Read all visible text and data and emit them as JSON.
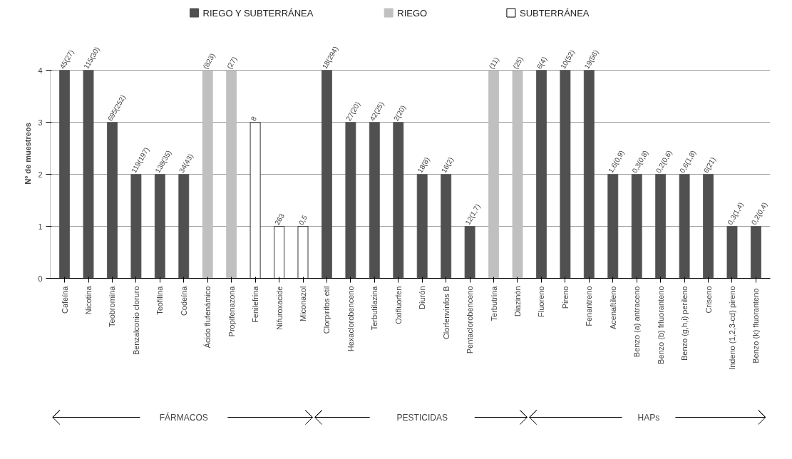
{
  "chart_data": {
    "type": "bar",
    "ylabel": "Nº de muestreos",
    "categories": [
      "Cafeína",
      "Nicotina",
      "Teobromina",
      "Benzalconio cloruro",
      "Teofilina",
      "Codeína",
      "Ácido flufenámico",
      "Propifenazona",
      "Fenilefrina",
      "Nifuroxacide",
      "Miconazol",
      "Clorpirifos etil",
      "Hexaclorobenceno",
      "Terbutilazina",
      "Oxifluorfen",
      "Diurón",
      "Clorfenvinfos B",
      "Pentaclorobenceno",
      "Terbutrina",
      "Diazinón",
      "Fluoreno",
      "Pireno",
      "Fenantreno",
      "Acenaftileno",
      "Benzo (a) antraceno",
      "Benzo (b) frluoranteno",
      "Benzo (g,h,i) perileno",
      "Criseno",
      "Indeno (1,2,3-cd) pireno",
      "Benzo (k)  fluoranteno"
    ],
    "series": [
      {
        "name": "RIEGO Y SUBTERRÁNEA",
        "color": "#505050",
        "values": [
          4,
          4,
          3,
          2,
          2,
          2,
          null,
          null,
          null,
          null,
          null,
          4,
          3,
          3,
          3,
          2,
          2,
          1,
          null,
          null,
          4,
          4,
          4,
          2,
          2,
          2,
          2,
          2,
          1,
          1
        ]
      },
      {
        "name": "RIEGO",
        "color": "#c0c0c0",
        "values": [
          null,
          null,
          null,
          null,
          null,
          null,
          4,
          4,
          null,
          null,
          null,
          null,
          null,
          null,
          null,
          null,
          null,
          null,
          4,
          4,
          null,
          null,
          null,
          null,
          null,
          null,
          null,
          null,
          null,
          null
        ]
      },
      {
        "name": "SUBTERRÁNEA",
        "color": "#ffffff",
        "values": [
          null,
          null,
          null,
          null,
          null,
          null,
          null,
          null,
          3,
          1,
          1,
          null,
          null,
          null,
          null,
          null,
          null,
          null,
          null,
          null,
          null,
          null,
          null,
          null,
          null,
          null,
          null,
          null,
          null,
          null
        ]
      }
    ],
    "ylim": [
      0,
      4
    ],
    "yticks": [
      0,
      1,
      2,
      3,
      4
    ],
    "grid": "y",
    "legend": "top",
    "annotations": [
      {
        "text": "45(27)",
        "x": "Cafeína",
        "y": 4
      },
      {
        "text": "115(30)",
        "x": "Nicotina",
        "y": 4
      },
      {
        "text": "695(252)",
        "x": "Teobromina",
        "y": 3
      },
      {
        "text": "119(197)",
        "x": "Benzalconio cloruro",
        "y": 2
      },
      {
        "text": "138(35)",
        "x": "Teofilina",
        "y": 2
      },
      {
        "text": "34(43)",
        "x": "Codeína",
        "y": 2
      },
      {
        "text": "(823)",
        "x": "Ácido flufenámico",
        "y": 4
      },
      {
        "text": "(27)",
        "x": "Propifenazona",
        "y": 4
      },
      {
        "text": "8",
        "x": "Fenilefrina",
        "y": 3
      },
      {
        "text": "263",
        "x": "Nifuroxacide",
        "y": 1
      },
      {
        "text": "0,5",
        "x": "Miconazol",
        "y": 1
      },
      {
        "text": "18(294)",
        "x": "Clorpirifos etil",
        "y": 4
      },
      {
        "text": "27(20)",
        "x": "Hexaclorobenceno",
        "y": 3
      },
      {
        "text": "42(25)",
        "x": "Terbutilazina",
        "y": 3
      },
      {
        "text": "2(20)",
        "x": "Oxifluorfen",
        "y": 3
      },
      {
        "text": "18(8)",
        "x": "Diurón",
        "y": 2
      },
      {
        "text": "16(2)",
        "x": "Clorfenvinfos B",
        "y": 2
      },
      {
        "text": "12(1,7)",
        "x": "Pentaclorobenceno",
        "y": 1
      },
      {
        "text": "(11)",
        "x": "Terbutrina",
        "y": 4
      },
      {
        "text": "(25)",
        "x": "Diazinón",
        "y": 4
      },
      {
        "text": "6(4)",
        "x": "Fluoreno",
        "y": 4
      },
      {
        "text": "10(52)",
        "x": "Pireno",
        "y": 4
      },
      {
        "text": "19(56)",
        "x": "Fenantreno",
        "y": 4
      },
      {
        "text": "1,6(0,9)",
        "x": "Acenaftileno",
        "y": 2
      },
      {
        "text": "0,3(0,8)",
        "x": "Benzo (a) antraceno",
        "y": 2
      },
      {
        "text": "0,2(0,6)",
        "x": "Benzo (b) frluoranteno",
        "y": 2
      },
      {
        "text": "0,6(1,8)",
        "x": "Benzo (g,h,i) perileno",
        "y": 2
      },
      {
        "text": "6(21)",
        "x": "Criseno",
        "y": 2
      },
      {
        "text": "0,3(1,4)",
        "x": "Indeno (1,2,3-cd) pireno",
        "y": 1
      },
      {
        "text": "0,2(0,4)",
        "x": "Benzo (k)  fluoranteno",
        "y": 1
      },
      "FÁRMACOS",
      "PESTICIDAS",
      "HAPs"
    ]
  }
}
